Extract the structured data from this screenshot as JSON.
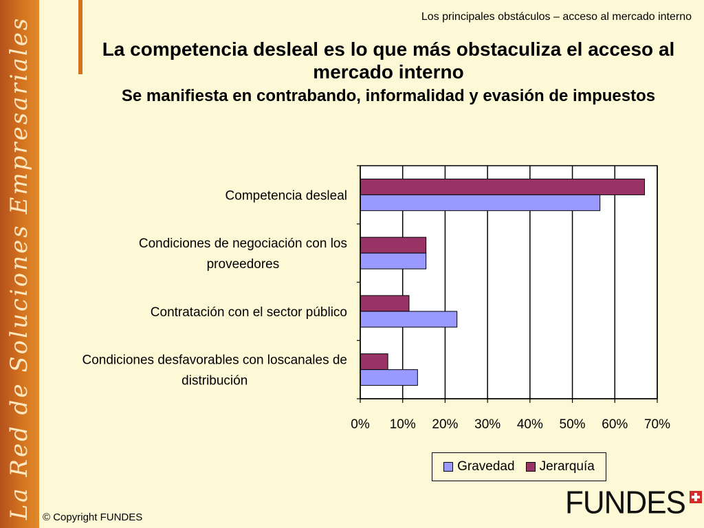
{
  "slide": {
    "sidebar_text": "La Red de Soluciones Empresariales",
    "top_caption": "Los principales obstáculos –  acceso al mercado interno",
    "copyright": "© Copyright FUNDES",
    "logo_text": "FUNDES",
    "logo_icon": "swiss-cross-icon"
  },
  "chart_data": {
    "type": "bar",
    "orientation": "horizontal",
    "title": "La competencia desleal es lo que más obstaculiza el acceso al mercado interno",
    "subtitle": "Se manifiesta en contrabando, informalidad y evasión de impuestos",
    "categories": [
      [
        "Competencia desleal"
      ],
      [
        "Condiciones de negociación con los",
        "proveedores"
      ],
      [
        "Contratación con el sector público"
      ],
      [
        "Condiciones desfavorables con loscanales de",
        "distribución"
      ]
    ],
    "series": [
      {
        "name": "Jerarquía",
        "color": "#993366",
        "values": [
          0.67,
          0.155,
          0.115,
          0.065
        ]
      },
      {
        "name": "Gravedad",
        "color": "#9999ff",
        "values": [
          0.565,
          0.155,
          0.228,
          0.135
        ]
      }
    ],
    "xlim": [
      0,
      0.7
    ],
    "xticks": [
      0,
      0.1,
      0.2,
      0.3,
      0.4,
      0.5,
      0.6,
      0.7
    ],
    "xtick_labels": [
      "0%",
      "10%",
      "20%",
      "30%",
      "40%",
      "50%",
      "60%",
      "70%"
    ],
    "grid": true,
    "legend": {
      "position": "bottom",
      "order": [
        "Gravedad",
        "Jerarquía"
      ]
    }
  }
}
